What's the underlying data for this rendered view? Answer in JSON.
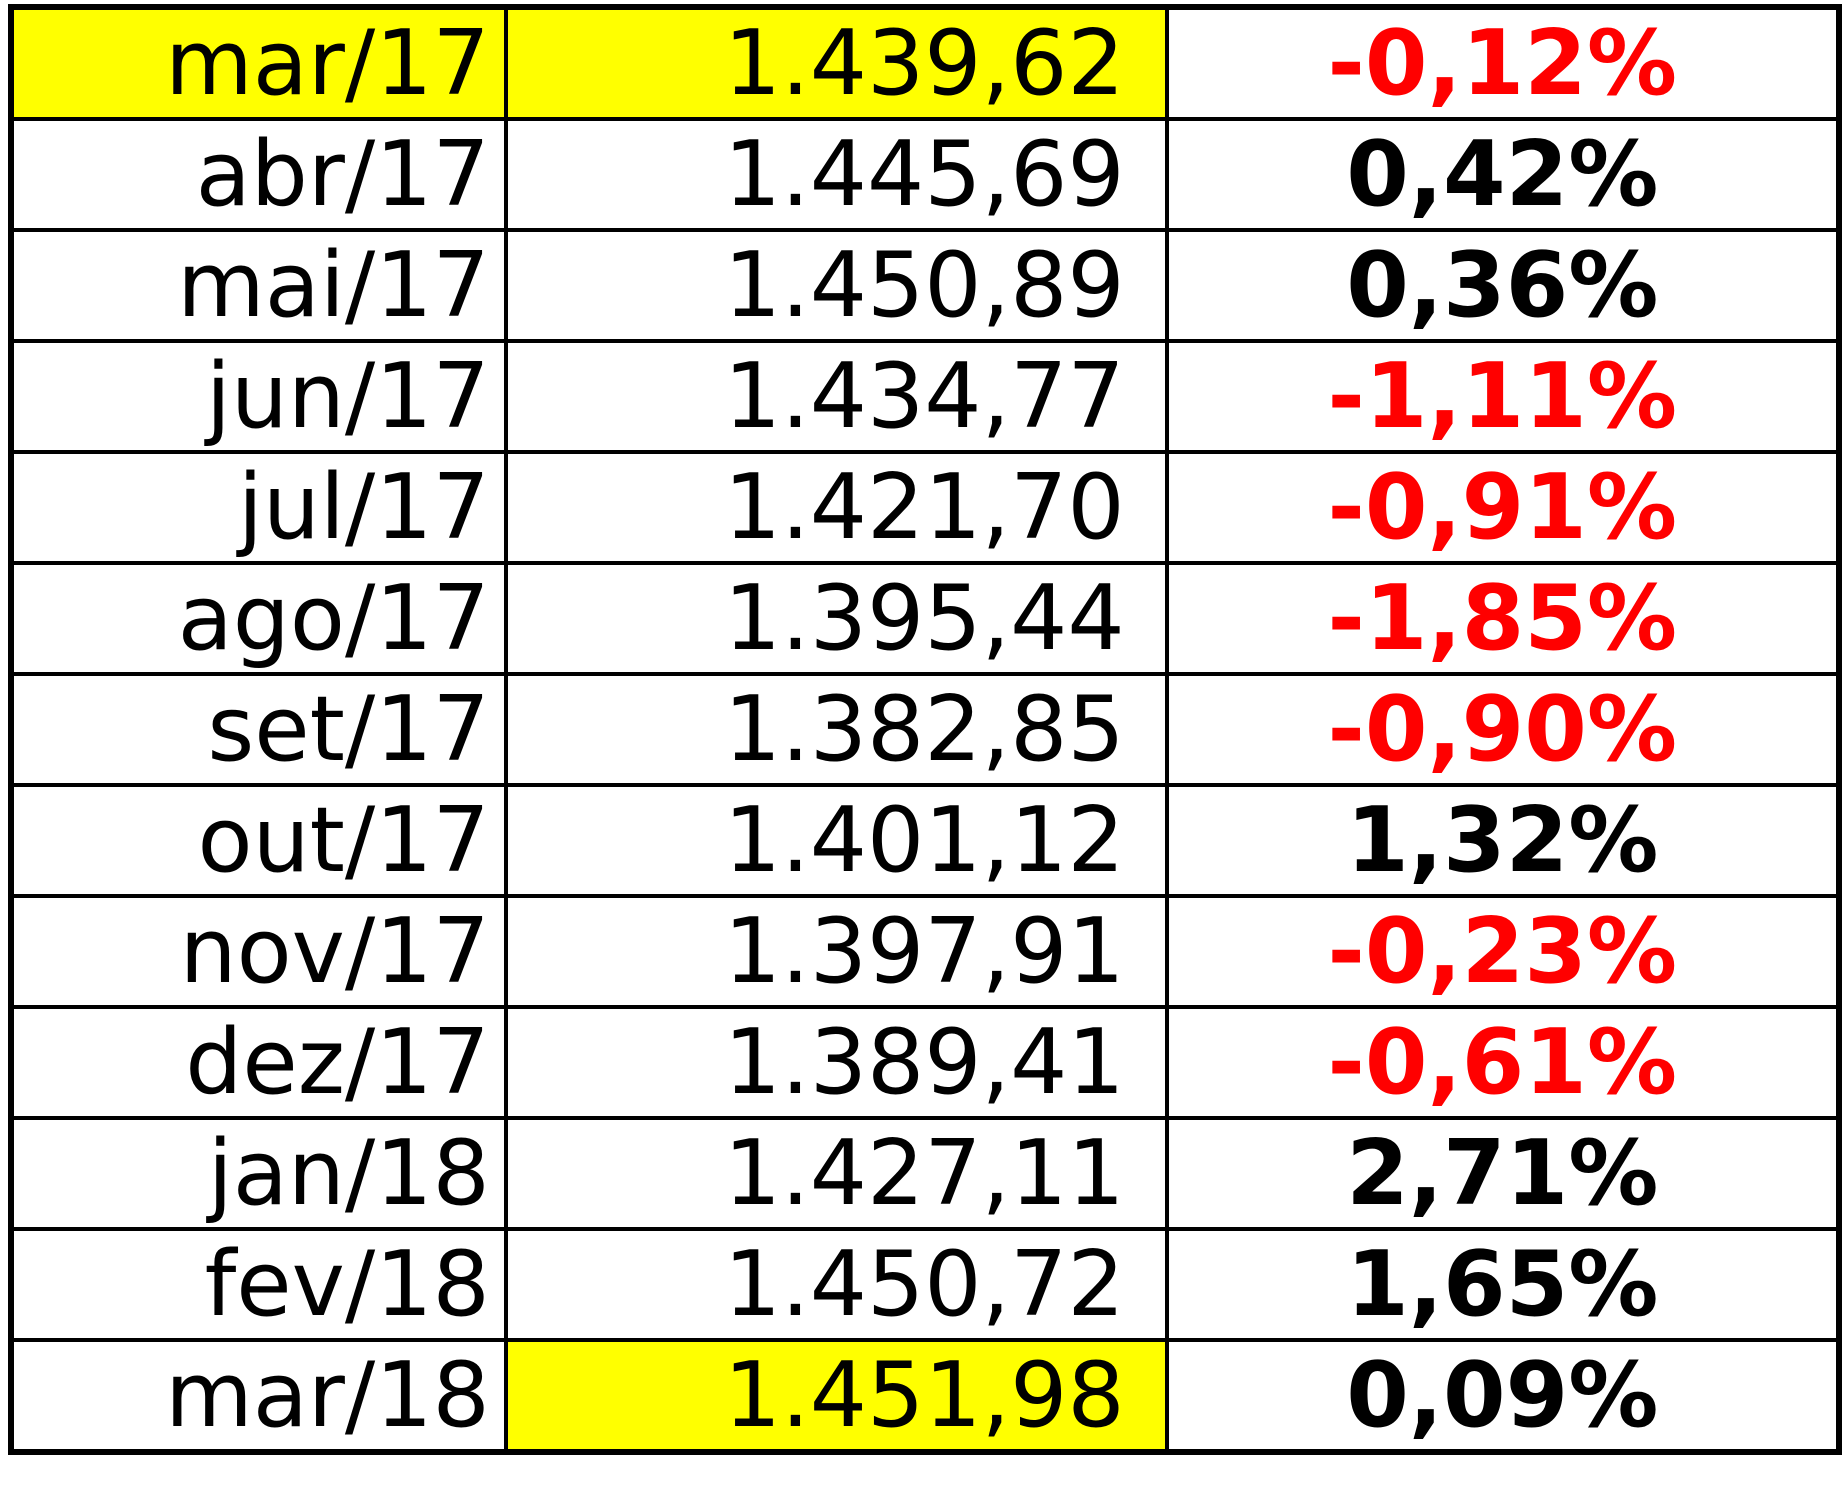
{
  "table": {
    "rows": [
      [
        "mar/17",
        "1.439,62",
        "-0,12%"
      ],
      [
        "abr/17",
        "1.445,69",
        "0,42%"
      ],
      [
        "mai/17",
        "1.450,89",
        "0,36%"
      ],
      [
        "jun/17",
        "1.434,77",
        "-1,11%"
      ],
      [
        "jul/17",
        "1.421,70",
        "-0,91%"
      ],
      [
        "ago/17",
        "1.395,44",
        "-1,85%"
      ],
      [
        "set/17",
        "1.382,85",
        "-0,90%"
      ],
      [
        "out/17",
        "1.401,12",
        "1,32%"
      ],
      [
        "nov/17",
        "1.397,91",
        "-0,23%"
      ],
      [
        "dez/17",
        "1.389,41",
        "-0,61%"
      ],
      [
        "jan/18",
        "1.427,11",
        "2,71%"
      ],
      [
        "fev/18",
        "1.450,72",
        "1,65%"
      ],
      [
        "mar/18",
        "1.451,98",
        "0,09%"
      ]
    ]
  }
}
